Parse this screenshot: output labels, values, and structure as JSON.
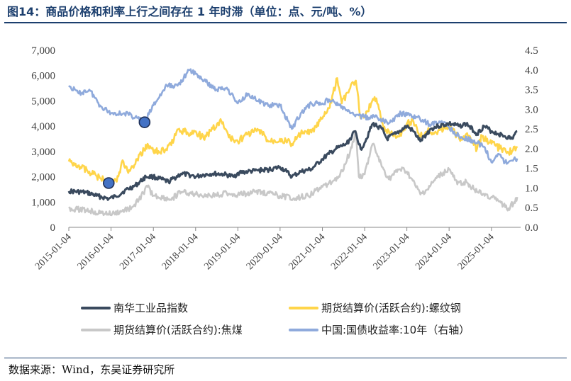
{
  "title": "图14：商品价格和利率上行之间存在 1 年时滞（单位：点、元/吨、%）",
  "source": "数据来源：Wind，东吴证券研究所",
  "colors": {
    "south_china": "#3a4a5e",
    "rebar": "#ffd54a",
    "coke": "#c8c8c8",
    "bond": "#8faadc",
    "marker_fill": "#4472c4",
    "marker_stroke": "#1f2f55",
    "title": "#1c3f6e"
  },
  "chart_data": {
    "type": "line",
    "x_type": "date",
    "x_ticks": [
      "2015-01-04",
      "2016-01-04",
      "2017-01-04",
      "2018-01-04",
      "2019-01-04",
      "2020-01-04",
      "2021-01-04",
      "2022-01-04",
      "2023-01-04",
      "2024-01-04",
      "2025-01-04"
    ],
    "y_left": {
      "ticks": [
        "0",
        "1,000",
        "2,000",
        "3,000",
        "4,000",
        "5,000",
        "6,000",
        "7,000"
      ],
      "ylim": [
        0,
        7000
      ]
    },
    "y_right": {
      "ticks": [
        "0.0",
        "0.5",
        "1.0",
        "1.5",
        "2.0",
        "2.5",
        "3.0",
        "3.5",
        "4.0",
        "4.5"
      ],
      "ylim": [
        0,
        4.5
      ]
    },
    "grid": false,
    "legend_position": "bottom",
    "series": [
      {
        "name": "南华工业品指数",
        "axis": "left",
        "color_key": "south_china",
        "points": [
          [
            "2015-01-04",
            1430
          ],
          [
            "2015-06-01",
            1380
          ],
          [
            "2015-09-01",
            1250
          ],
          [
            "2015-12-15",
            1130
          ],
          [
            "2016-02-15",
            1220
          ],
          [
            "2016-05-01",
            1450
          ],
          [
            "2016-08-01",
            1650
          ],
          [
            "2016-11-01",
            2000
          ],
          [
            "2017-01-04",
            2000
          ],
          [
            "2017-05-15",
            1800
          ],
          [
            "2017-09-01",
            2120
          ],
          [
            "2017-12-01",
            2050
          ],
          [
            "2018-01-04",
            2000
          ],
          [
            "2018-03-15",
            2080
          ],
          [
            "2018-06-01",
            2120
          ],
          [
            "2018-09-01",
            2100
          ],
          [
            "2018-12-01",
            2000
          ],
          [
            "2019-01-04",
            2150
          ],
          [
            "2019-04-01",
            2200
          ],
          [
            "2019-07-01",
            2250
          ],
          [
            "2019-10-01",
            2280
          ],
          [
            "2020-01-04",
            2380
          ],
          [
            "2020-03-01",
            2200
          ],
          [
            "2020-04-15",
            2000
          ],
          [
            "2020-07-01",
            2200
          ],
          [
            "2020-10-01",
            2300
          ],
          [
            "2021-01-04",
            2700
          ],
          [
            "2021-03-01",
            2900
          ],
          [
            "2021-05-01",
            3100
          ],
          [
            "2021-08-01",
            3300
          ],
          [
            "2021-10-15",
            3800
          ],
          [
            "2021-12-01",
            3100
          ],
          [
            "2022-01-04",
            3350
          ],
          [
            "2022-03-15",
            4100
          ],
          [
            "2022-06-01",
            3900
          ],
          [
            "2022-07-15",
            3500
          ],
          [
            "2022-10-01",
            3700
          ],
          [
            "2023-01-04",
            4000
          ],
          [
            "2023-03-01",
            3800
          ],
          [
            "2023-05-01",
            3400
          ],
          [
            "2023-08-01",
            3900
          ],
          [
            "2023-10-01",
            4000
          ],
          [
            "2024-01-04",
            4100
          ],
          [
            "2024-04-01",
            4000
          ],
          [
            "2024-06-01",
            4100
          ],
          [
            "2024-09-01",
            3700
          ],
          [
            "2024-11-01",
            4000
          ],
          [
            "2025-01-04",
            3800
          ],
          [
            "2025-03-01",
            3700
          ],
          [
            "2025-05-01",
            3600
          ],
          [
            "2025-07-01",
            3500
          ],
          [
            "2025-08-15",
            3800
          ]
        ]
      },
      {
        "name": "期货结算价(活跃合约):螺纹钢",
        "axis": "left",
        "color_key": "rebar",
        "points": [
          [
            "2015-01-04",
            2600
          ],
          [
            "2015-04-01",
            2450
          ],
          [
            "2015-07-01",
            2200
          ],
          [
            "2015-10-01",
            1950
          ],
          [
            "2015-12-15",
            1750
          ],
          [
            "2016-02-15",
            1850
          ],
          [
            "2016-04-20",
            2600
          ],
          [
            "2016-06-01",
            2150
          ],
          [
            "2016-08-01",
            2500
          ],
          [
            "2016-11-15",
            3300
          ],
          [
            "2017-01-04",
            3000
          ],
          [
            "2017-05-01",
            3050
          ],
          [
            "2017-08-15",
            3900
          ],
          [
            "2017-11-01",
            3700
          ],
          [
            "2018-01-04",
            3800
          ],
          [
            "2018-03-15",
            3500
          ],
          [
            "2018-06-01",
            3900
          ],
          [
            "2018-08-15",
            4200
          ],
          [
            "2018-11-01",
            3500
          ],
          [
            "2019-01-04",
            3400
          ],
          [
            "2019-04-01",
            3700
          ],
          [
            "2019-07-01",
            3850
          ],
          [
            "2019-10-01",
            3400
          ],
          [
            "2020-01-04",
            3500
          ],
          [
            "2020-04-15",
            3300
          ],
          [
            "2020-07-01",
            3700
          ],
          [
            "2020-10-01",
            3750
          ],
          [
            "2021-01-04",
            4300
          ],
          [
            "2021-03-01",
            4700
          ],
          [
            "2021-05-12",
            5900
          ],
          [
            "2021-06-20",
            4900
          ],
          [
            "2021-09-01",
            5500
          ],
          [
            "2021-10-20",
            5800
          ],
          [
            "2021-12-01",
            4300
          ],
          [
            "2022-01-04",
            4400
          ],
          [
            "2022-03-01",
            4900
          ],
          [
            "2022-04-15",
            5100
          ],
          [
            "2022-07-01",
            3800
          ],
          [
            "2022-09-01",
            3700
          ],
          [
            "2022-11-01",
            3600
          ],
          [
            "2023-01-04",
            4100
          ],
          [
            "2023-03-01",
            4200
          ],
          [
            "2023-05-01",
            3600
          ],
          [
            "2023-07-01",
            3800
          ],
          [
            "2023-09-01",
            3750
          ],
          [
            "2024-01-04",
            4000
          ],
          [
            "2024-04-01",
            3500
          ],
          [
            "2024-06-01",
            3700
          ],
          [
            "2024-09-01",
            3100
          ],
          [
            "2024-10-15",
            3600
          ],
          [
            "2025-01-04",
            3300
          ],
          [
            "2025-04-01",
            3100
          ],
          [
            "2025-06-01",
            2950
          ],
          [
            "2025-08-15",
            3200
          ]
        ]
      },
      {
        "name": "期货结算价(活跃合约):焦煤",
        "axis": "left",
        "color_key": "coke",
        "points": [
          [
            "2015-01-04",
            750
          ],
          [
            "2015-06-01",
            680
          ],
          [
            "2015-10-01",
            560
          ],
          [
            "2016-01-15",
            520
          ],
          [
            "2016-04-01",
            620
          ],
          [
            "2016-07-01",
            780
          ],
          [
            "2016-09-01",
            1100
          ],
          [
            "2016-11-15",
            1600
          ],
          [
            "2017-01-04",
            1250
          ],
          [
            "2017-06-01",
            1100
          ],
          [
            "2017-09-01",
            1400
          ],
          [
            "2018-01-04",
            1300
          ],
          [
            "2018-06-01",
            1250
          ],
          [
            "2018-10-01",
            1350
          ],
          [
            "2019-01-04",
            1280
          ],
          [
            "2019-06-01",
            1400
          ],
          [
            "2019-10-01",
            1350
          ],
          [
            "2020-01-04",
            1250
          ],
          [
            "2020-05-01",
            1150
          ],
          [
            "2020-09-01",
            1250
          ],
          [
            "2021-01-04",
            1600
          ],
          [
            "2021-06-01",
            2000
          ],
          [
            "2021-09-01",
            3000
          ],
          [
            "2021-10-20",
            3800
          ],
          [
            "2021-11-15",
            2000
          ],
          [
            "2022-01-04",
            2100
          ],
          [
            "2022-03-15",
            3300
          ],
          [
            "2022-06-01",
            2400
          ],
          [
            "2022-08-01",
            1900
          ],
          [
            "2022-11-01",
            2300
          ],
          [
            "2023-01-04",
            2200
          ],
          [
            "2023-05-01",
            1300
          ],
          [
            "2023-07-01",
            1500
          ],
          [
            "2023-10-01",
            2000
          ],
          [
            "2024-01-04",
            2300
          ],
          [
            "2024-03-15",
            1700
          ],
          [
            "2024-06-01",
            1800
          ],
          [
            "2024-09-01",
            1400
          ],
          [
            "2025-01-04",
            1200
          ],
          [
            "2025-06-01",
            750
          ],
          [
            "2025-07-20",
            1000
          ],
          [
            "2025-08-15",
            1200
          ]
        ]
      },
      {
        "name": "中国:国债收益率:10年（右轴）",
        "axis": "right",
        "color_key": "bond",
        "points": [
          [
            "2015-01-04",
            3.6
          ],
          [
            "2015-04-01",
            3.4
          ],
          [
            "2015-07-01",
            3.5
          ],
          [
            "2015-10-01",
            3.1
          ],
          [
            "2016-01-04",
            2.9
          ],
          [
            "2016-05-01",
            2.9
          ],
          [
            "2016-08-01",
            2.8
          ],
          [
            "2016-10-20",
            2.67
          ],
          [
            "2017-01-04",
            3.1
          ],
          [
            "2017-05-01",
            3.6
          ],
          [
            "2017-08-01",
            3.6
          ],
          [
            "2017-11-15",
            4.0
          ],
          [
            "2018-01-04",
            3.9
          ],
          [
            "2018-04-01",
            3.7
          ],
          [
            "2018-07-01",
            3.5
          ],
          [
            "2018-10-01",
            3.55
          ],
          [
            "2019-01-04",
            3.15
          ],
          [
            "2019-04-01",
            3.4
          ],
          [
            "2019-07-01",
            3.2
          ],
          [
            "2019-10-01",
            3.1
          ],
          [
            "2020-01-04",
            3.1
          ],
          [
            "2020-04-15",
            2.5
          ],
          [
            "2020-07-01",
            2.9
          ],
          [
            "2020-10-01",
            3.15
          ],
          [
            "2021-01-04",
            3.15
          ],
          [
            "2021-03-01",
            3.25
          ],
          [
            "2021-06-01",
            3.1
          ],
          [
            "2021-09-01",
            2.9
          ],
          [
            "2022-01-04",
            2.8
          ],
          [
            "2022-04-01",
            2.8
          ],
          [
            "2022-08-01",
            2.65
          ],
          [
            "2022-11-15",
            2.9
          ],
          [
            "2023-01-04",
            2.85
          ],
          [
            "2023-04-01",
            2.8
          ],
          [
            "2023-08-01",
            2.6
          ],
          [
            "2023-11-01",
            2.7
          ],
          [
            "2024-01-04",
            2.55
          ],
          [
            "2024-04-01",
            2.3
          ],
          [
            "2024-08-01",
            2.2
          ],
          [
            "2024-11-01",
            2.05
          ],
          [
            "2025-01-04",
            1.65
          ],
          [
            "2025-03-15",
            1.85
          ],
          [
            "2025-05-01",
            1.65
          ],
          [
            "2025-07-01",
            1.7
          ],
          [
            "2025-08-15",
            1.75
          ]
        ]
      }
    ],
    "markers": [
      {
        "series": "期货结算价(活跃合约):螺纹钢",
        "x": "2015-12-15",
        "y": 1750,
        "axis": "left"
      },
      {
        "series": "中国:国债收益率:10年（右轴）",
        "x": "2016-10-20",
        "y": 2.67,
        "axis": "right"
      }
    ]
  }
}
